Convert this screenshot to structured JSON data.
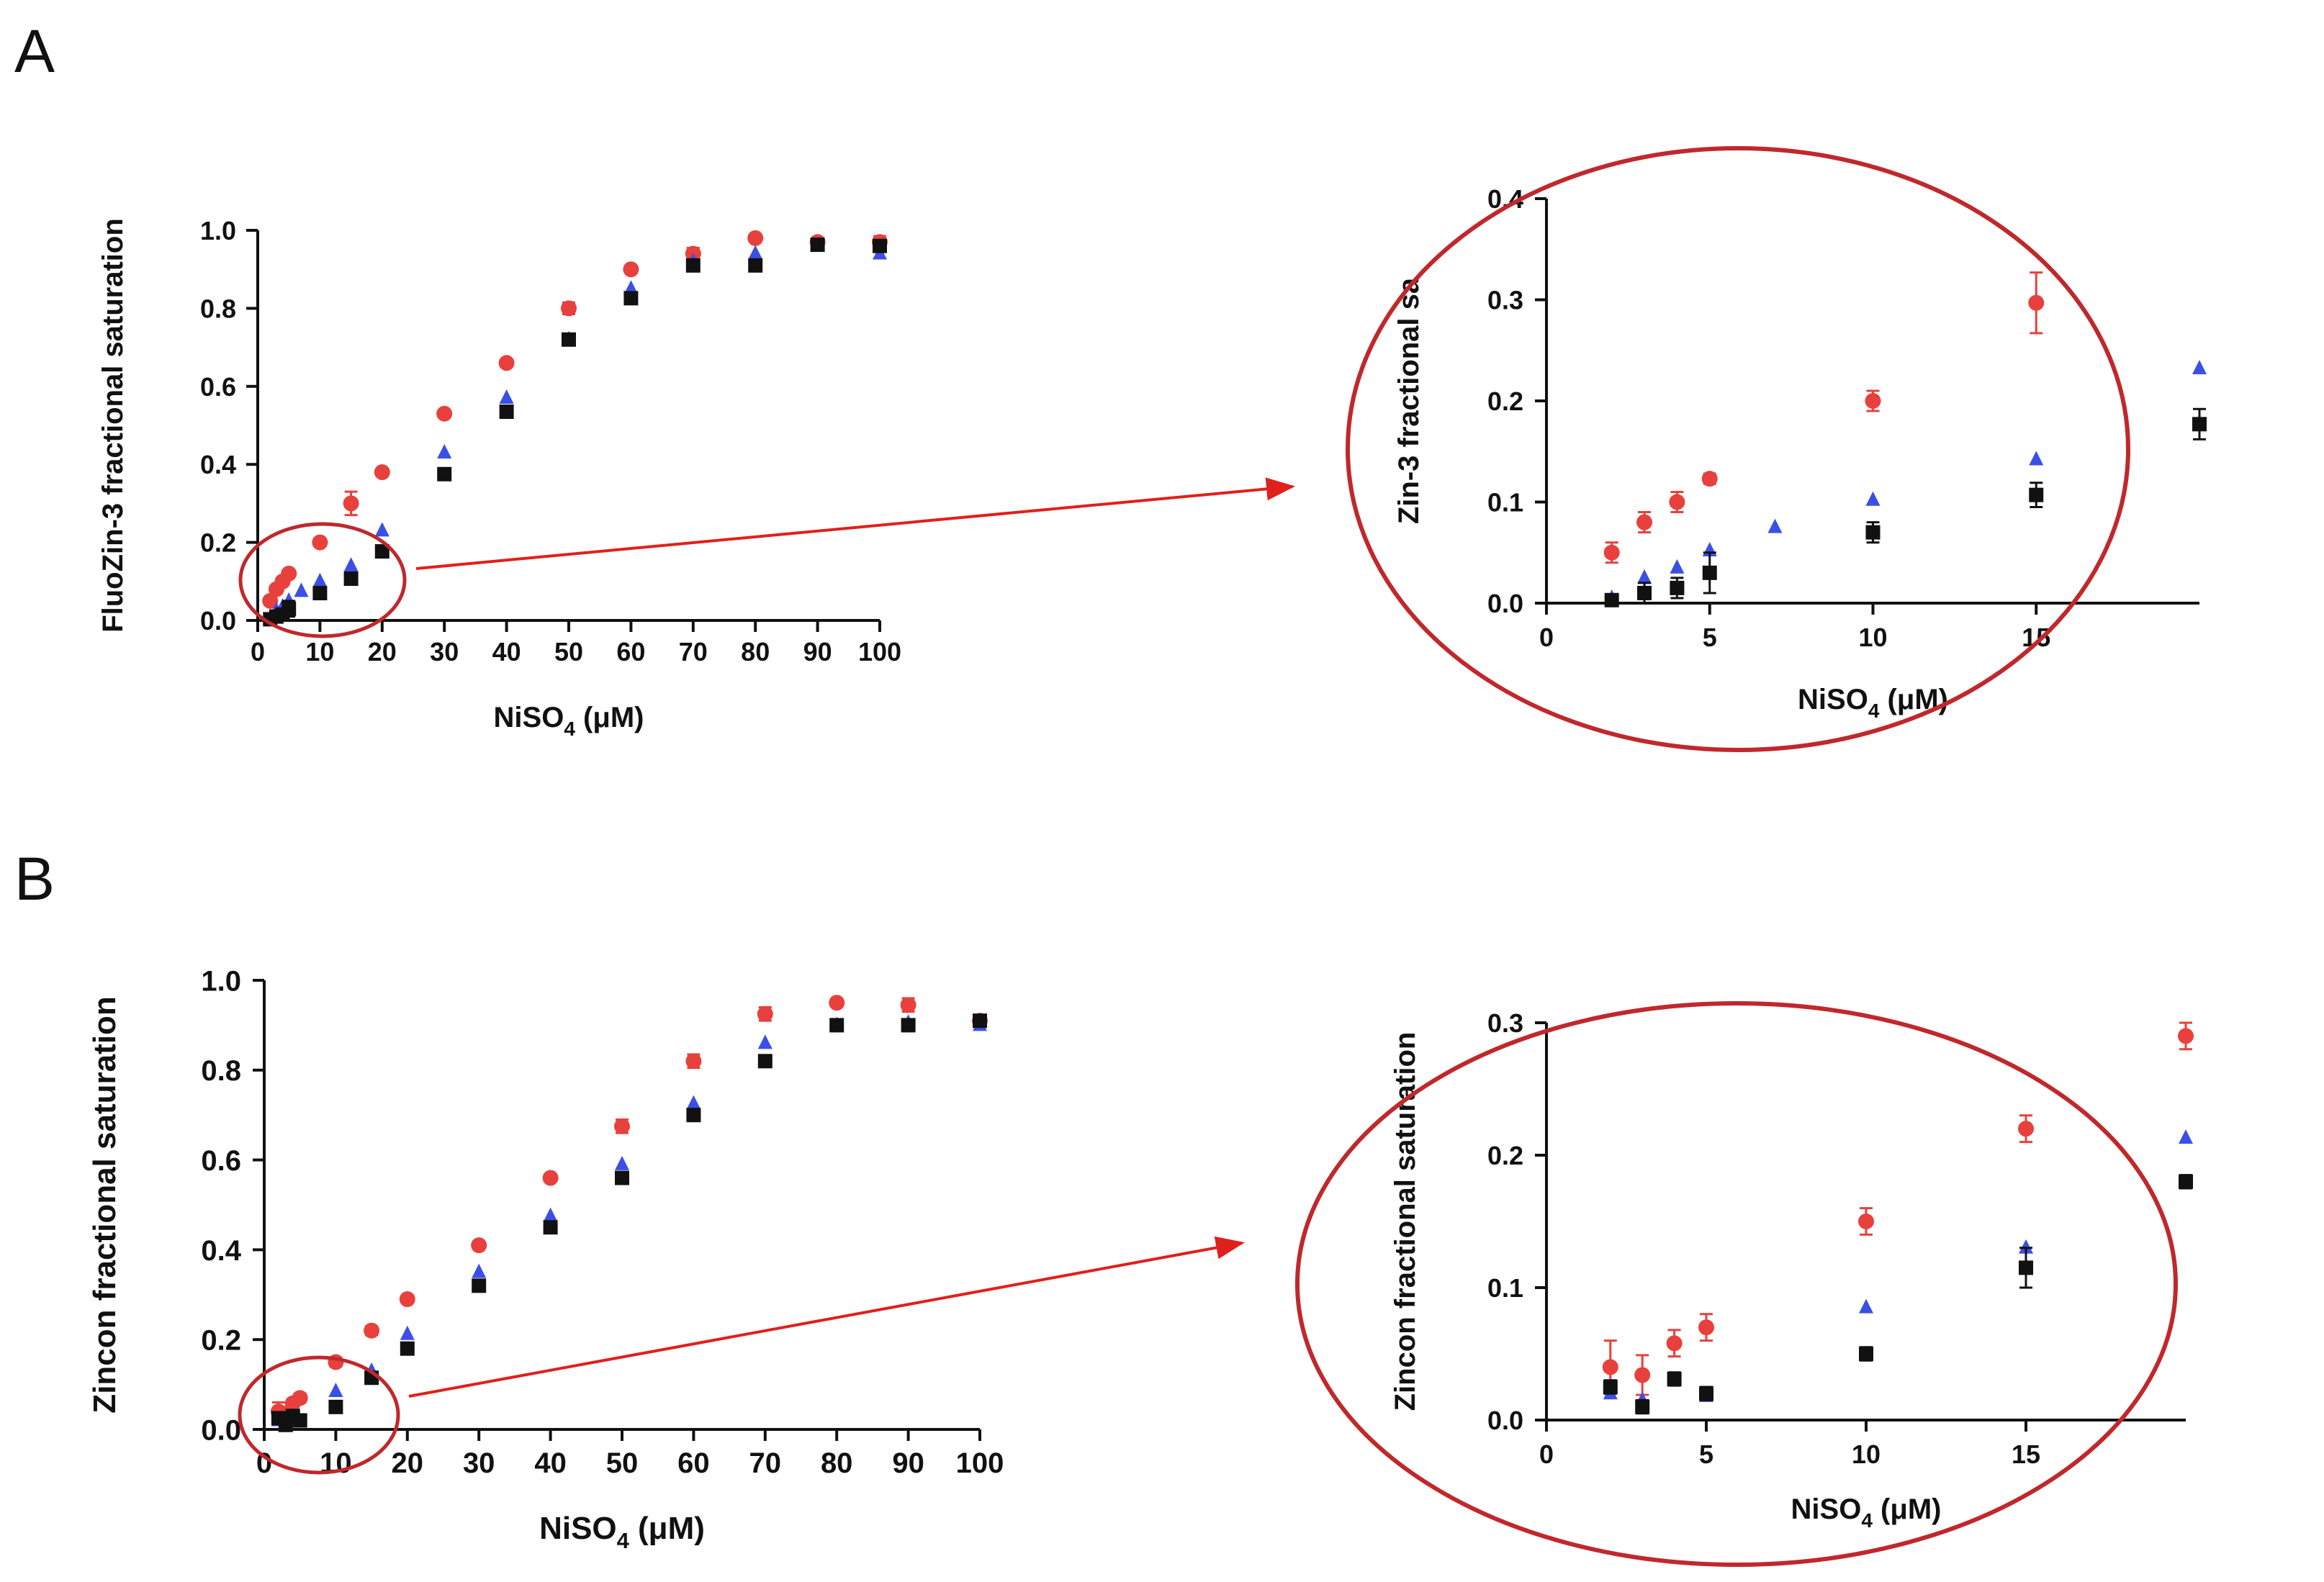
{
  "panels": {
    "A": {
      "letter": "A"
    },
    "B": {
      "letter": "B"
    }
  },
  "colors": {
    "red_series": "#e8403c",
    "blue_series": "#3b4fe6",
    "black_series": "#111111",
    "ellipse": "#c0282c",
    "arrow": "#e0201c"
  },
  "chart_data": [
    {
      "id": "A-main",
      "type": "scatter",
      "xlabel_main": "NiSO",
      "xlabel_sub": "4",
      "xlabel_unit": " (μM)",
      "ylabel": "FluoZin-3 fractional saturation",
      "xlim": [
        0,
        100
      ],
      "ylim": [
        0,
        1.0
      ],
      "xticks": [
        0,
        10,
        20,
        30,
        40,
        50,
        60,
        70,
        80,
        90,
        100
      ],
      "yticks": [
        0.0,
        0.2,
        0.4,
        0.6,
        0.8,
        1.0
      ],
      "ytick_labels": [
        "0.0",
        "0.2",
        "0.4",
        "0.6",
        "0.8",
        "1.0"
      ],
      "series": [
        {
          "marker": "circle",
          "color": "#e8403c",
          "x": [
            2,
            3,
            4,
            5,
            10,
            15,
            20,
            30,
            40,
            50,
            60,
            70,
            80,
            90,
            100
          ],
          "y": [
            0.05,
            0.08,
            0.1,
            0.12,
            0.2,
            0.3,
            0.38,
            0.53,
            0.66,
            0.8,
            0.9,
            0.94,
            0.98,
            0.97,
            0.97
          ],
          "err": [
            0.01,
            0.01,
            0.01,
            0.005,
            0.01,
            0.03,
            0.005,
            0.005,
            0.005,
            0.015,
            0.005,
            0.015,
            0.005,
            0.01,
            0.015
          ]
        },
        {
          "marker": "triangle",
          "color": "#3b4fe6",
          "x": [
            2,
            3,
            4,
            5,
            7,
            10,
            15,
            20,
            30,
            40,
            50,
            60,
            70,
            80,
            90,
            100
          ],
          "y": [
            0.005,
            0.025,
            0.035,
            0.05,
            0.075,
            0.1,
            0.14,
            0.23,
            0.43,
            0.57,
            0.72,
            0.85,
            0.92,
            0.94,
            0.96,
            0.94
          ],
          "err": [
            0,
            0,
            0,
            0,
            0,
            0,
            0,
            0,
            0,
            0,
            0,
            0,
            0,
            0,
            0,
            0
          ]
        },
        {
          "marker": "square",
          "color": "#111111",
          "x": [
            2,
            3,
            4,
            5,
            10,
            15,
            20,
            30,
            40,
            50,
            60,
            70,
            80,
            90,
            100
          ],
          "y": [
            0.003,
            0.01,
            0.015,
            0.03,
            0.07,
            0.107,
            0.177,
            0.375,
            0.535,
            0.72,
            0.826,
            0.91,
            0.91,
            0.963,
            0.96
          ],
          "err": [
            0.003,
            0.01,
            0.01,
            0.02,
            0.01,
            0.015,
            0.015,
            0.005,
            0.005,
            0.015,
            0.005,
            0.01,
            0.015,
            0.005,
            0.01
          ]
        }
      ]
    },
    {
      "id": "A-inset",
      "type": "scatter",
      "xlabel_main": "NiSO",
      "xlabel_sub": "4",
      "xlabel_unit": " (μM)",
      "ylabel": "Zin-3 fractional sa",
      "xlim": [
        0,
        20
      ],
      "ylim": [
        0,
        0.4
      ],
      "xticks": [
        0,
        5,
        10,
        15
      ],
      "yticks": [
        0.0,
        0.1,
        0.2,
        0.3,
        0.4
      ],
      "ytick_labels": [
        "0.0",
        "0.1",
        "0.2",
        "0.3",
        "0.4"
      ],
      "series": [
        {
          "marker": "circle",
          "color": "#e8403c",
          "x": [
            2,
            3,
            4,
            5,
            10,
            15
          ],
          "y": [
            0.05,
            0.08,
            0.1,
            0.123,
            0.2,
            0.297
          ],
          "err": [
            0.01,
            0.01,
            0.01,
            0.005,
            0.01,
            0.03
          ]
        },
        {
          "marker": "triangle",
          "color": "#3b4fe6",
          "x": [
            2,
            3,
            4,
            5,
            7,
            10,
            15,
            20
          ],
          "y": [
            0.005,
            0.025,
            0.035,
            0.052,
            0.075,
            0.102,
            0.142,
            0.232
          ],
          "err": [
            0,
            0,
            0,
            0,
            0,
            0,
            0,
            0
          ]
        },
        {
          "marker": "square",
          "color": "#111111",
          "x": [
            2,
            3,
            4,
            5,
            10,
            15,
            20
          ],
          "y": [
            0.003,
            0.01,
            0.015,
            0.03,
            0.07,
            0.107,
            0.177
          ],
          "err": [
            0.003,
            0.01,
            0.01,
            0.02,
            0.01,
            0.012,
            0.015
          ]
        }
      ]
    },
    {
      "id": "B-main",
      "type": "scatter",
      "xlabel_main": "NiSO",
      "xlabel_sub": "4",
      "xlabel_unit": " (μM)",
      "ylabel": "Zincon fractional saturation",
      "xlim": [
        0,
        100
      ],
      "ylim": [
        0,
        1.0
      ],
      "xticks": [
        0,
        10,
        20,
        30,
        40,
        50,
        60,
        70,
        80,
        90,
        100
      ],
      "yticks": [
        0.0,
        0.2,
        0.4,
        0.6,
        0.8,
        1.0
      ],
      "ytick_labels": [
        "0.0",
        "0.2",
        "0.4",
        "0.6",
        "0.8",
        "1.0"
      ],
      "series": [
        {
          "marker": "circle",
          "color": "#e8403c",
          "x": [
            2,
            3,
            4,
            5,
            10,
            15,
            20,
            30,
            40,
            50,
            60,
            70,
            80,
            90,
            100
          ],
          "y": [
            0.04,
            0.035,
            0.058,
            0.07,
            0.15,
            0.22,
            0.29,
            0.41,
            0.56,
            0.675,
            0.82,
            0.925,
            0.95,
            0.945,
            0.91
          ],
          "err": [
            0.02,
            0.015,
            0.01,
            0.01,
            0.01,
            0.01,
            0.005,
            0.005,
            0.005,
            0.015,
            0.015,
            0.015,
            0.005,
            0.015,
            0.005
          ]
        },
        {
          "marker": "triangle",
          "color": "#3b4fe6",
          "x": [
            2,
            3,
            4,
            5,
            10,
            15,
            20,
            30,
            40,
            50,
            60,
            70,
            80,
            90,
            100
          ],
          "y": [
            0.02,
            0.015,
            0.03,
            0.018,
            0.085,
            0.13,
            0.212,
            0.35,
            0.475,
            0.59,
            0.725,
            0.86,
            0.9,
            0.905,
            0.9
          ],
          "err": [
            0,
            0,
            0,
            0,
            0,
            0,
            0,
            0,
            0,
            0,
            0,
            0,
            0,
            0,
            0
          ]
        },
        {
          "marker": "square",
          "color": "#111111",
          "x": [
            2,
            3,
            4,
            5,
            10,
            15,
            20,
            30,
            40,
            50,
            60,
            70,
            80,
            90,
            100
          ],
          "y": [
            0.025,
            0.01,
            0.03,
            0.02,
            0.05,
            0.115,
            0.18,
            0.32,
            0.45,
            0.56,
            0.7,
            0.82,
            0.9,
            0.9,
            0.91
          ],
          "err": [
            0.005,
            0.005,
            0.005,
            0.005,
            0.005,
            0.01,
            0.01,
            0.005,
            0.005,
            0.005,
            0.005,
            0.005,
            0.005,
            0.005,
            0.005
          ]
        }
      ]
    },
    {
      "id": "B-inset",
      "type": "scatter",
      "xlabel_main": "NiSO",
      "xlabel_sub": "4",
      "xlabel_unit": " (μM)",
      "ylabel": "Zincon fractional saturation",
      "xlim": [
        0,
        20
      ],
      "ylim": [
        0,
        0.3
      ],
      "xticks": [
        0,
        5,
        10,
        15
      ],
      "yticks": [
        0.0,
        0.1,
        0.2,
        0.3
      ],
      "ytick_labels": [
        "0.0",
        "0.1",
        "0.2",
        "0.3"
      ],
      "series": [
        {
          "marker": "circle",
          "color": "#e8403c",
          "x": [
            2,
            3,
            4,
            5,
            10,
            15,
            20
          ],
          "y": [
            0.04,
            0.034,
            0.058,
            0.07,
            0.15,
            0.22,
            0.29
          ],
          "err": [
            0.02,
            0.015,
            0.01,
            0.01,
            0.01,
            0.01,
            0.01
          ]
        },
        {
          "marker": "triangle",
          "color": "#3b4fe6",
          "x": [
            2,
            3,
            4,
            5,
            10,
            15,
            20
          ],
          "y": [
            0.02,
            0.015,
            0.03,
            0.018,
            0.085,
            0.13,
            0.213
          ],
          "err": [
            0,
            0,
            0,
            0,
            0,
            0,
            0
          ]
        },
        {
          "marker": "square",
          "color": "#111111",
          "x": [
            2,
            3,
            4,
            5,
            10,
            15,
            20
          ],
          "y": [
            0.025,
            0.01,
            0.031,
            0.02,
            0.05,
            0.115,
            0.18
          ],
          "err": [
            0.005,
            0.005,
            0.005,
            0.005,
            0.005,
            0.015,
            0.005
          ]
        }
      ]
    }
  ]
}
